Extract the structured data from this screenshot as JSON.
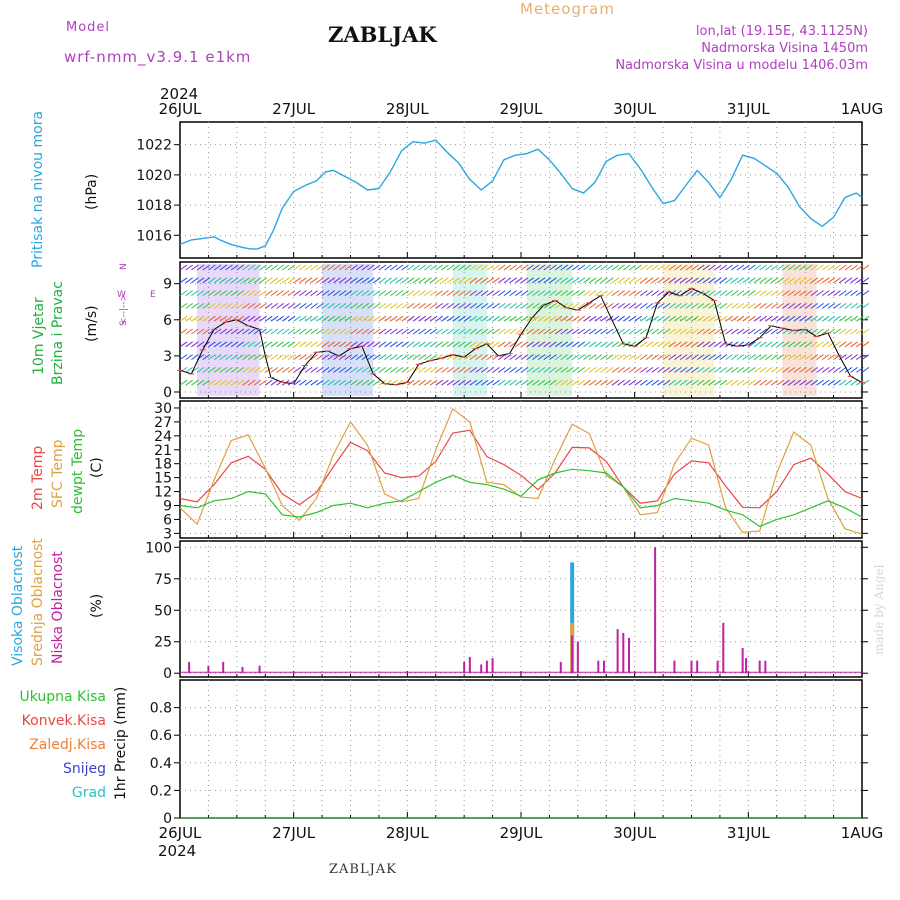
{
  "header": {
    "model_label": "Model",
    "model_name": "wrf-nmm_v3.9.1  e1km",
    "station_title": "ZABLJAK",
    "meteogram_label": "Meteogram",
    "lonlat": "lon,lat (19.15E, 43.1125N)",
    "elevation": "Nadmorska Visina 1450m",
    "model_elevation": "Nadmorska Visina u modelu 1406.03m"
  },
  "footer": {
    "station": "ZABLJAK",
    "credit": "made by Angel"
  },
  "time_axis": {
    "year_top": "2024",
    "year_bottom": "2024",
    "labels": [
      "26JUL",
      "27JUL",
      "28JUL",
      "29JUL",
      "30JUL",
      "31JUL",
      "1AUG"
    ]
  },
  "colors": {
    "pressure": "#2aa7e0",
    "temp2m": "#e84848",
    "sfc_temp": "#e0a040",
    "dewpt": "#30c030",
    "cloud_high": "#2aa7e0",
    "cloud_mid": "#e0a040",
    "cloud_low": "#c020a0",
    "precip_total": "#30c030",
    "precip_conv": "#e84848",
    "precip_frozen": "#f08030",
    "precip_snow": "#4040d0",
    "precip_hail": "#30c0c0",
    "compass": "#b040c0"
  },
  "chart_data": [
    {
      "type": "line",
      "panel": "pressure",
      "ylabel_color": "Pritisak na nivou mora",
      "ylabel_unit": "(hPa)",
      "ylim": [
        1014.5,
        1023.5
      ],
      "yticks": [
        1016,
        1018,
        1020,
        1022
      ],
      "grid": true,
      "series": [
        {
          "x": [
            0,
            0.1,
            0.2,
            0.3,
            0.35,
            0.45,
            0.55,
            0.62,
            0.68,
            0.75,
            0.82,
            0.9,
            1.0,
            1.1,
            1.2,
            1.28,
            1.35,
            1.45,
            1.55,
            1.65,
            1.75,
            1.85,
            1.95,
            2.05,
            2.15,
            2.25,
            2.35,
            2.45,
            2.55,
            2.65,
            2.75,
            2.85,
            2.95,
            3.05,
            3.15,
            3.25,
            3.35,
            3.45,
            3.55,
            3.65,
            3.75,
            3.85,
            3.95,
            4.05,
            4.15,
            4.25,
            4.35,
            4.45,
            4.55,
            4.65,
            4.75,
            4.85,
            4.95,
            5.05,
            5.15,
            5.25,
            5.35,
            5.45,
            5.55,
            5.65,
            5.75,
            5.85,
            5.95,
            6.0
          ],
          "values": [
            1015.4,
            1015.7,
            1015.8,
            1015.9,
            1015.7,
            1015.4,
            1015.2,
            1015.1,
            1015.1,
            1015.3,
            1016.3,
            1017.8,
            1018.9,
            1019.3,
            1019.6,
            1020.2,
            1020.3,
            1019.9,
            1019.5,
            1019.0,
            1019.1,
            1020.2,
            1021.6,
            1022.2,
            1022.1,
            1022.3,
            1021.5,
            1020.8,
            1019.7,
            1019.0,
            1019.6,
            1021.0,
            1021.3,
            1021.4,
            1021.7,
            1021.0,
            1020.1,
            1019.1,
            1018.8,
            1019.5,
            1020.9,
            1021.3,
            1021.4,
            1020.4,
            1019.2,
            1018.1,
            1018.3,
            1019.3,
            1020.3,
            1019.5,
            1018.5,
            1019.7,
            1021.3,
            1021.1,
            1020.6,
            1020.1,
            1019.2,
            1017.9,
            1017.1,
            1016.6,
            1017.2,
            1018.5,
            1018.8,
            1018.5
          ]
        }
      ]
    },
    {
      "type": "line",
      "panel": "wind",
      "ylabel_color": "10m Vjetar Brzina i Pravac",
      "ylabel_unit": "(m/s)",
      "ylim": [
        -0.5,
        10.8
      ],
      "yticks": [
        0,
        3,
        6,
        9
      ],
      "compass": {
        "n": "N",
        "s": "S",
        "e": "E",
        "w": "W",
        "arrows": "<--|-->"
      },
      "grid": true,
      "series": [
        {
          "name": "speed",
          "x": [
            0,
            0.1,
            0.2,
            0.3,
            0.4,
            0.5,
            0.6,
            0.7,
            0.75,
            0.8,
            0.9,
            1.0,
            1.1,
            1.2,
            1.3,
            1.4,
            1.5,
            1.6,
            1.7,
            1.8,
            1.9,
            2.0,
            2.1,
            2.2,
            2.3,
            2.4,
            2.5,
            2.6,
            2.7,
            2.8,
            2.9,
            3.0,
            3.1,
            3.2,
            3.3,
            3.4,
            3.5,
            3.6,
            3.7,
            3.8,
            3.9,
            4.0,
            4.1,
            4.2,
            4.3,
            4.4,
            4.5,
            4.6,
            4.7,
            4.8,
            4.9,
            5.0,
            5.1,
            5.2,
            5.3,
            5.4,
            5.5,
            5.6,
            5.7,
            5.8,
            5.9,
            6.0
          ],
          "values": [
            1.8,
            1.5,
            3.5,
            5.2,
            5.8,
            6.0,
            5.5,
            5.2,
            3.0,
            1.2,
            0.8,
            0.7,
            2.2,
            3.3,
            3.4,
            3.0,
            3.6,
            3.8,
            1.5,
            0.7,
            0.6,
            0.8,
            2.3,
            2.6,
            2.8,
            3.1,
            2.9,
            3.6,
            4.0,
            3.0,
            3.2,
            4.8,
            6.2,
            7.2,
            7.6,
            7.0,
            6.8,
            7.4,
            8.0,
            6.0,
            4.0,
            3.8,
            4.5,
            7.4,
            8.3,
            8.0,
            8.6,
            8.2,
            7.6,
            4.0,
            3.8,
            3.9,
            4.5,
            5.5,
            5.3,
            5.1,
            5.2,
            4.6,
            4.9,
            3.0,
            1.3,
            0.8
          ]
        }
      ],
      "shaded_barbs_intervals": [
        [
          0.15,
          0.7
        ],
        [
          1.25,
          1.7
        ],
        [
          2.4,
          2.7
        ],
        [
          3.05,
          3.45
        ],
        [
          4.25,
          4.7
        ],
        [
          5.3,
          5.6
        ]
      ]
    },
    {
      "type": "line",
      "panel": "temperature",
      "ylabel_color": "2m Temp SFC Temp dewpt Temp",
      "ylabel_unit": "(C)",
      "ylim": [
        2,
        31.5
      ],
      "yticks": [
        3,
        6,
        9,
        12,
        15,
        18,
        21,
        24,
        27,
        30
      ],
      "grid": true,
      "series": [
        {
          "name": "2m Temp",
          "x": [
            0,
            0.15,
            0.3,
            0.45,
            0.6,
            0.75,
            0.9,
            1.05,
            1.2,
            1.35,
            1.5,
            1.65,
            1.8,
            1.95,
            2.1,
            2.25,
            2.4,
            2.55,
            2.7,
            2.85,
            3.0,
            3.15,
            3.3,
            3.45,
            3.6,
            3.75,
            3.9,
            4.05,
            4.2,
            4.35,
            4.5,
            4.65,
            4.8,
            4.95,
            5.1,
            5.25,
            5.4,
            5.55,
            5.7,
            5.85,
            6.0
          ],
          "values": [
            10.5,
            9.8,
            13.5,
            18.2,
            19.6,
            16.8,
            11.5,
            9.2,
            11.8,
            17.4,
            22.6,
            20.8,
            16.0,
            15.0,
            15.3,
            18.5,
            24.6,
            25.2,
            19.5,
            17.8,
            15.5,
            12.4,
            16.0,
            21.5,
            21.4,
            18.5,
            13.0,
            9.5,
            10.0,
            15.8,
            18.6,
            18.2,
            13.2,
            8.6,
            8.5,
            12.0,
            17.8,
            19.2,
            15.8,
            12.0,
            10.5
          ]
        },
        {
          "name": "SFC Temp",
          "x": [
            0,
            0.15,
            0.3,
            0.45,
            0.6,
            0.75,
            0.9,
            1.05,
            1.2,
            1.35,
            1.5,
            1.65,
            1.8,
            1.95,
            2.1,
            2.25,
            2.4,
            2.55,
            2.7,
            2.85,
            3.0,
            3.15,
            3.3,
            3.45,
            3.6,
            3.75,
            3.9,
            4.05,
            4.2,
            4.35,
            4.5,
            4.65,
            4.8,
            4.95,
            5.1,
            5.25,
            5.4,
            5.55,
            5.7,
            5.85,
            6.0
          ],
          "values": [
            8.5,
            5.0,
            14.5,
            23.0,
            24.2,
            17.0,
            9.0,
            5.8,
            10.5,
            20.0,
            27.0,
            22.0,
            11.5,
            9.8,
            10.5,
            21.0,
            29.8,
            27.0,
            14.0,
            13.5,
            10.8,
            10.5,
            19.0,
            26.5,
            24.5,
            15.5,
            13.0,
            7.0,
            7.5,
            18.0,
            23.5,
            22.0,
            8.5,
            3.2,
            3.5,
            16.0,
            24.8,
            22.0,
            10.5,
            4.0,
            2.8
          ]
        },
        {
          "name": "dewpt Temp",
          "x": [
            0,
            0.15,
            0.3,
            0.45,
            0.6,
            0.75,
            0.9,
            1.05,
            1.2,
            1.35,
            1.5,
            1.65,
            1.8,
            1.95,
            2.1,
            2.25,
            2.4,
            2.55,
            2.7,
            2.85,
            3.0,
            3.15,
            3.3,
            3.45,
            3.6,
            3.75,
            3.9,
            4.05,
            4.2,
            4.35,
            4.5,
            4.65,
            4.8,
            4.95,
            5.1,
            5.25,
            5.4,
            5.55,
            5.7,
            5.85,
            6.0
          ],
          "values": [
            9.0,
            8.5,
            10.0,
            10.5,
            12.0,
            11.5,
            7.0,
            6.5,
            7.5,
            9.0,
            9.5,
            8.5,
            9.5,
            10.0,
            12.0,
            14.0,
            15.5,
            14.0,
            13.5,
            12.5,
            11.0,
            14.5,
            16.0,
            16.8,
            16.5,
            16.0,
            13.0,
            8.5,
            9.0,
            10.5,
            10.0,
            9.5,
            8.0,
            7.0,
            4.5,
            6.0,
            7.0,
            8.5,
            10.0,
            8.5,
            6.5
          ]
        }
      ]
    },
    {
      "type": "bar",
      "panel": "clouds",
      "ylabel_color": "Visoka Oblacnost Srednja Oblacnost Niska Oblacnost",
      "ylabel_unit": "(%)",
      "ylim": [
        -3,
        105
      ],
      "yticks": [
        0,
        25,
        50,
        75,
        100
      ],
      "grid": true,
      "series": [
        {
          "name": "Visoka Oblacnost",
          "x": [
            3.45
          ],
          "values": [
            88
          ]
        },
        {
          "name": "Srednja Oblacnost",
          "x": [
            3.45
          ],
          "values": [
            40
          ]
        },
        {
          "name": "Niska Oblacnost",
          "x": [
            0.08,
            0.25,
            0.38,
            0.55,
            0.7,
            2.5,
            2.55,
            2.65,
            2.7,
            2.75,
            3.35,
            3.45,
            3.5,
            3.68,
            3.73,
            3.85,
            3.9,
            3.95,
            4.18,
            4.35,
            4.5,
            4.55,
            4.73,
            4.78,
            4.95,
            4.98,
            5.1,
            5.15
          ],
          "values": [
            9,
            6,
            9,
            5,
            6,
            9,
            13,
            7,
            10,
            12,
            9,
            30,
            25,
            10,
            10,
            35,
            32,
            28,
            100,
            10,
            10,
            10,
            10,
            40,
            20,
            12,
            10,
            10
          ]
        }
      ]
    },
    {
      "type": "line",
      "panel": "precip",
      "ylabel_unit": "1hr Precip (mm)",
      "legend": [
        "Ukupna  Kisa",
        "Konvek.Kisa",
        "Zaledj.Kisa",
        "Snijeg",
        "Grad"
      ],
      "ylim": [
        0,
        1
      ],
      "yticks": [
        0,
        0.2,
        0.4,
        0.6,
        0.8
      ],
      "grid": true,
      "series": [
        {
          "name": "Ukupna  Kisa",
          "x": [
            0,
            6
          ],
          "values": [
            0,
            0
          ]
        }
      ]
    }
  ]
}
